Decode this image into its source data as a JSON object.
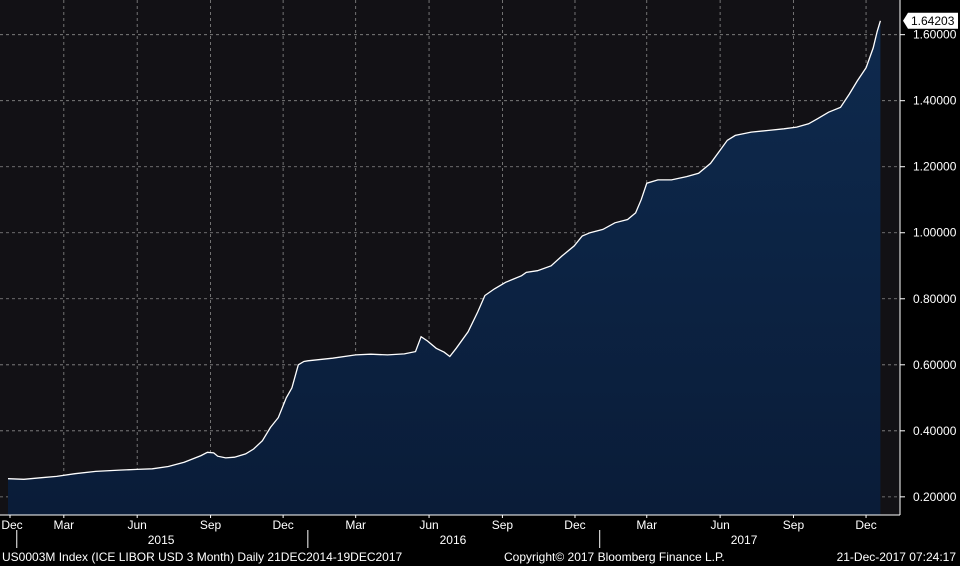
{
  "footer": {
    "left": "US0003M Index (ICE LIBOR USD 3 Month)  Daily 21DEC2014-19DEC2017",
    "center": "Copyright© 2017 Bloomberg Finance L.P.",
    "right": "21-Dec-2017 07:24:17"
  },
  "colors": {
    "background": "#000000",
    "plot_background": "#121115",
    "grid": "#8a8a8a",
    "area_top": "#0e2a4e",
    "area_bottom": "#0a1c38",
    "line": "#ffffff",
    "text": "#ffffff",
    "last_value_box": "#ffffff"
  },
  "chart_data": {
    "type": "area",
    "title": "",
    "xlabel": "",
    "ylabel": "",
    "ylim": [
      0.145,
      1.705
    ],
    "x_range": [
      "2014-12-21",
      "2017-12-21"
    ],
    "y_ticks": [
      "0.20000",
      "0.40000",
      "0.60000",
      "0.80000",
      "1.00000",
      "1.20000",
      "1.40000",
      "1.60000"
    ],
    "x_ticks": [
      {
        "date": "2014-12-01",
        "label": "Dec"
      },
      {
        "date": "2015-03-01",
        "label": "Mar"
      },
      {
        "date": "2015-06-01",
        "label": "Jun"
      },
      {
        "date": "2015-09-01",
        "label": "Sep"
      },
      {
        "date": "2015-12-01",
        "label": "Dec"
      },
      {
        "date": "2016-03-01",
        "label": "Mar"
      },
      {
        "date": "2016-06-01",
        "label": "Jun"
      },
      {
        "date": "2016-09-01",
        "label": "Sep"
      },
      {
        "date": "2016-12-01",
        "label": "Dec"
      },
      {
        "date": "2017-03-01",
        "label": "Mar"
      },
      {
        "date": "2017-06-01",
        "label": "Jun"
      },
      {
        "date": "2017-09-01",
        "label": "Sep"
      },
      {
        "date": "2017-12-01",
        "label": "Dec"
      }
    ],
    "year_labels": [
      {
        "date": "2015-07-01",
        "label": "2015"
      },
      {
        "date": "2016-07-01",
        "label": "2016"
      },
      {
        "date": "2017-07-01",
        "label": "2017"
      }
    ],
    "year_dividers": [
      "2015-01-01",
      "2016-01-01",
      "2017-01-01"
    ],
    "grid": true,
    "last_value": {
      "date": "2017-12-19",
      "value": 1.64203,
      "label": "1.64203"
    },
    "series": [
      {
        "points": [
          [
            "2014-12-21",
            0.255
          ],
          [
            "2015-01-10",
            0.253
          ],
          [
            "2015-02-01",
            0.258
          ],
          [
            "2015-02-20",
            0.262
          ],
          [
            "2015-03-15",
            0.27
          ],
          [
            "2015-04-10",
            0.277
          ],
          [
            "2015-05-10",
            0.281
          ],
          [
            "2015-06-01",
            0.283
          ],
          [
            "2015-06-20",
            0.285
          ],
          [
            "2015-07-10",
            0.292
          ],
          [
            "2015-07-30",
            0.305
          ],
          [
            "2015-08-20",
            0.325
          ],
          [
            "2015-08-28",
            0.335
          ],
          [
            "2015-09-05",
            0.333
          ],
          [
            "2015-09-10",
            0.323
          ],
          [
            "2015-09-20",
            0.318
          ],
          [
            "2015-10-01",
            0.32
          ],
          [
            "2015-10-15",
            0.33
          ],
          [
            "2015-10-25",
            0.345
          ],
          [
            "2015-11-05",
            0.37
          ],
          [
            "2015-11-15",
            0.41
          ],
          [
            "2015-11-25",
            0.44
          ],
          [
            "2015-12-05",
            0.5
          ],
          [
            "2015-12-12",
            0.53
          ],
          [
            "2015-12-20",
            0.6
          ],
          [
            "2015-12-27",
            0.61
          ],
          [
            "2016-01-01",
            0.612
          ],
          [
            "2016-02-01",
            0.62
          ],
          [
            "2016-03-01",
            0.63
          ],
          [
            "2016-03-20",
            0.632
          ],
          [
            "2016-04-10",
            0.63
          ],
          [
            "2016-05-01",
            0.633
          ],
          [
            "2016-05-15",
            0.64
          ],
          [
            "2016-05-22",
            0.685
          ],
          [
            "2016-05-30",
            0.672
          ],
          [
            "2016-06-10",
            0.65
          ],
          [
            "2016-06-20",
            0.638
          ],
          [
            "2016-06-27",
            0.625
          ],
          [
            "2016-07-05",
            0.65
          ],
          [
            "2016-07-20",
            0.7
          ],
          [
            "2016-08-01",
            0.76
          ],
          [
            "2016-08-10",
            0.81
          ],
          [
            "2016-08-22",
            0.83
          ],
          [
            "2016-09-05",
            0.85
          ],
          [
            "2016-09-15",
            0.86
          ],
          [
            "2016-09-25",
            0.87
          ],
          [
            "2016-10-01",
            0.88
          ],
          [
            "2016-10-15",
            0.885
          ],
          [
            "2016-11-01",
            0.9
          ],
          [
            "2016-11-15",
            0.93
          ],
          [
            "2016-11-30",
            0.96
          ],
          [
            "2016-12-10",
            0.99
          ],
          [
            "2016-12-20",
            1.0
          ],
          [
            "2017-01-05",
            1.01
          ],
          [
            "2017-01-20",
            1.03
          ],
          [
            "2017-02-05",
            1.04
          ],
          [
            "2017-02-15",
            1.06
          ],
          [
            "2017-02-22",
            1.1
          ],
          [
            "2017-03-01",
            1.15
          ],
          [
            "2017-03-15",
            1.16
          ],
          [
            "2017-04-01",
            1.16
          ],
          [
            "2017-04-20",
            1.17
          ],
          [
            "2017-05-05",
            1.18
          ],
          [
            "2017-05-20",
            1.21
          ],
          [
            "2017-06-01",
            1.25
          ],
          [
            "2017-06-10",
            1.28
          ],
          [
            "2017-06-20",
            1.295
          ],
          [
            "2017-07-10",
            1.305
          ],
          [
            "2017-08-01",
            1.31
          ],
          [
            "2017-08-20",
            1.315
          ],
          [
            "2017-09-05",
            1.32
          ],
          [
            "2017-09-20",
            1.33
          ],
          [
            "2017-10-01",
            1.345
          ],
          [
            "2017-10-15",
            1.365
          ],
          [
            "2017-10-30",
            1.38
          ],
          [
            "2017-11-10",
            1.42
          ],
          [
            "2017-11-20",
            1.46
          ],
          [
            "2017-12-01",
            1.5
          ],
          [
            "2017-12-10",
            1.56
          ],
          [
            "2017-12-15",
            1.61
          ],
          [
            "2017-12-19",
            1.642
          ]
        ]
      }
    ]
  }
}
